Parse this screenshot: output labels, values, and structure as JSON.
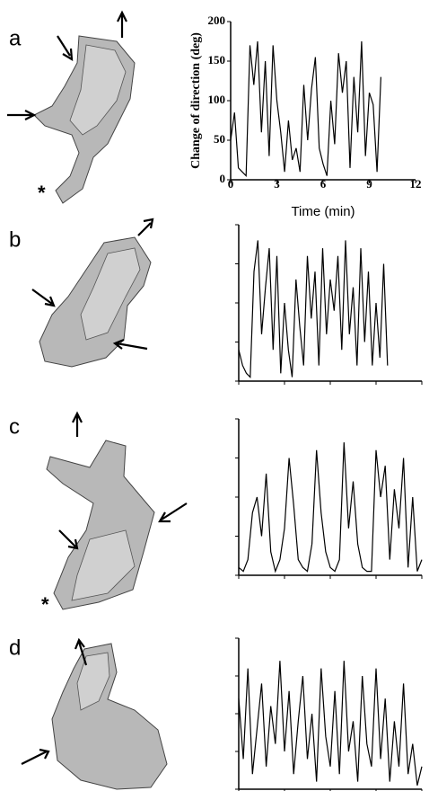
{
  "panels": [
    {
      "label": "a",
      "marker": "*"
    },
    {
      "label": "b"
    },
    {
      "label": "c",
      "marker": "*"
    },
    {
      "label": "d"
    }
  ],
  "chart_data": [
    {
      "type": "line",
      "xlabel": "Time (min)",
      "ylabel": "Change of direction (deg)",
      "tick_labels": true,
      "xlim": [
        0,
        12
      ],
      "ylim": [
        0,
        200
      ],
      "xticks": [
        0,
        3,
        6,
        9,
        12
      ],
      "yticks": [
        0,
        50,
        100,
        150,
        200
      ],
      "x": [
        0,
        0.25,
        0.5,
        0.75,
        1,
        1.25,
        1.5,
        1.75,
        2,
        2.25,
        2.5,
        2.75,
        3,
        3.25,
        3.5,
        3.75,
        4,
        4.25,
        4.5,
        4.75,
        5,
        5.25,
        5.5,
        5.75,
        6,
        6.25,
        6.5,
        6.75,
        7,
        7.25,
        7.5,
        7.75,
        8,
        8.25,
        8.5,
        8.75,
        9,
        9.25,
        9.5,
        9.75
      ],
      "series": [
        {
          "color": "#000000",
          "values": [
            50,
            85,
            15,
            10,
            5,
            170,
            120,
            175,
            60,
            150,
            30,
            170,
            100,
            60,
            10,
            75,
            25,
            40,
            10,
            120,
            50,
            115,
            155,
            40,
            20,
            5,
            100,
            45,
            160,
            110,
            150,
            15,
            130,
            60,
            175,
            30,
            110,
            95,
            10,
            130
          ]
        }
      ]
    },
    {
      "type": "line",
      "tick_labels": false,
      "xlim": [
        0,
        12
      ],
      "ylim": [
        0,
        200
      ],
      "xticks": [
        0,
        3,
        6,
        9,
        12
      ],
      "yticks": [
        0,
        50,
        100,
        150,
        200
      ],
      "x": [
        0,
        0.25,
        0.5,
        0.75,
        1,
        1.25,
        1.5,
        1.75,
        2,
        2.25,
        2.5,
        2.75,
        3,
        3.25,
        3.5,
        3.75,
        4,
        4.25,
        4.5,
        4.75,
        5,
        5.25,
        5.5,
        5.75,
        6,
        6.25,
        6.5,
        6.75,
        7,
        7.25,
        7.5,
        7.75,
        8,
        8.25,
        8.5,
        8.75,
        9,
        9.25,
        9.5,
        9.75
      ],
      "series": [
        {
          "color": "#000000",
          "values": [
            40,
            20,
            10,
            5,
            140,
            180,
            60,
            120,
            170,
            40,
            160,
            10,
            100,
            40,
            5,
            130,
            70,
            20,
            160,
            80,
            140,
            20,
            170,
            60,
            130,
            90,
            160,
            40,
            180,
            60,
            120,
            20,
            170,
            50,
            140,
            20,
            100,
            30,
            150,
            20
          ]
        }
      ]
    },
    {
      "type": "line",
      "tick_labels": false,
      "xlim": [
        0,
        12
      ],
      "ylim": [
        0,
        200
      ],
      "xticks": [
        0,
        3,
        6,
        9,
        12
      ],
      "yticks": [
        0,
        50,
        100,
        150,
        200
      ],
      "x": [
        0,
        0.3,
        0.6,
        0.9,
        1.2,
        1.5,
        1.8,
        2.1,
        2.4,
        2.7,
        3,
        3.3,
        3.6,
        3.9,
        4.2,
        4.5,
        4.8,
        5.1,
        5.4,
        5.7,
        6,
        6.3,
        6.6,
        6.9,
        7.2,
        7.5,
        7.8,
        8.1,
        8.4,
        8.7,
        9,
        9.3,
        9.6,
        9.9,
        10.2,
        10.5,
        10.8,
        11.1,
        11.4,
        11.7,
        12
      ],
      "series": [
        {
          "color": "#000000",
          "values": [
            10,
            5,
            20,
            80,
            100,
            50,
            130,
            30,
            5,
            20,
            60,
            150,
            90,
            20,
            10,
            5,
            40,
            160,
            80,
            30,
            10,
            5,
            20,
            170,
            60,
            120,
            40,
            10,
            5,
            5,
            160,
            100,
            140,
            20,
            110,
            60,
            150,
            10,
            100,
            5,
            20
          ]
        }
      ]
    },
    {
      "type": "line",
      "tick_labels": false,
      "xlim": [
        0,
        12
      ],
      "ylim": [
        0,
        200
      ],
      "xticks": [
        0,
        3,
        6,
        9,
        12
      ],
      "yticks": [
        0,
        50,
        100,
        150,
        200
      ],
      "x": [
        0,
        0.3,
        0.6,
        0.9,
        1.2,
        1.5,
        1.8,
        2.1,
        2.4,
        2.7,
        3,
        3.3,
        3.6,
        3.9,
        4.2,
        4.5,
        4.8,
        5.1,
        5.4,
        5.7,
        6,
        6.3,
        6.6,
        6.9,
        7.2,
        7.5,
        7.8,
        8.1,
        8.4,
        8.7,
        9,
        9.3,
        9.6,
        9.9,
        10.2,
        10.5,
        10.8,
        11.1,
        11.4,
        11.7,
        12
      ],
      "series": [
        {
          "color": "#000000",
          "values": [
            120,
            40,
            160,
            20,
            80,
            140,
            30,
            110,
            60,
            170,
            50,
            130,
            20,
            90,
            150,
            40,
            100,
            10,
            160,
            70,
            30,
            130,
            20,
            170,
            50,
            90,
            10,
            150,
            60,
            30,
            160,
            40,
            120,
            10,
            90,
            30,
            140,
            20,
            60,
            5,
            30
          ]
        }
      ]
    }
  ]
}
